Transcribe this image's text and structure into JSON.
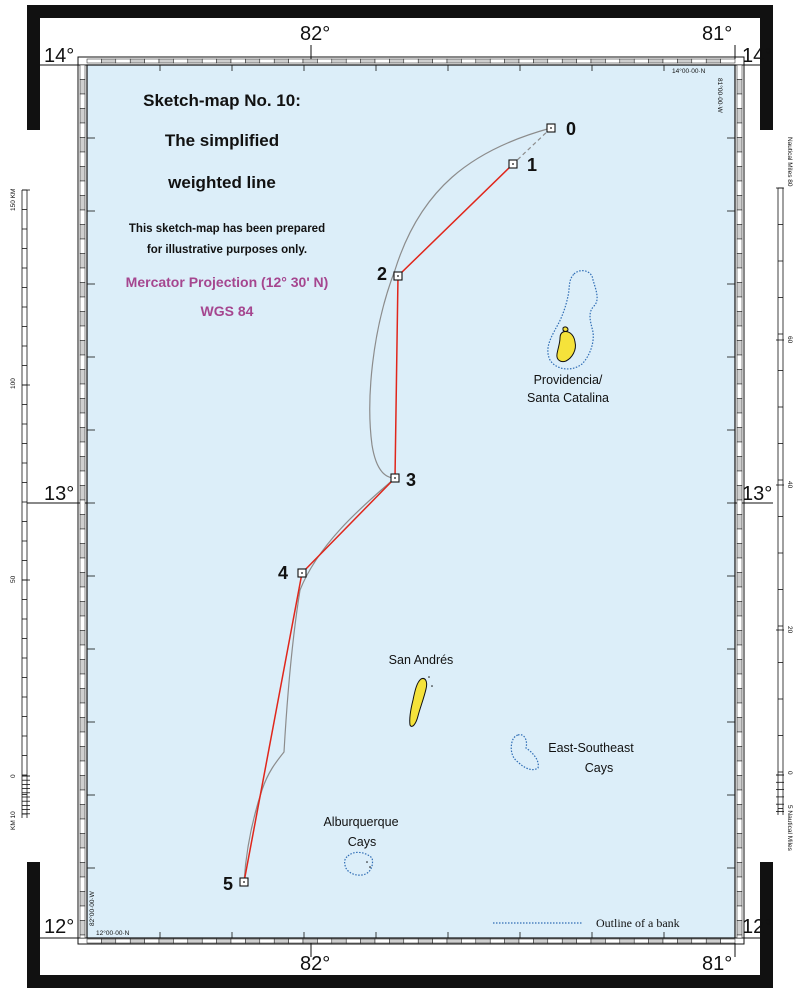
{
  "map": {
    "title_lines": [
      "Sketch-map No. 10:",
      "The simplified",
      "weighted line"
    ],
    "note_lines": [
      "This sketch-map has been prepared",
      "for illustrative purposes only."
    ],
    "projection": "Mercator Projection (12° 30' N)",
    "datum": "WGS 84",
    "colors": {
      "sea": "#dceef9",
      "land": "#f5e23a",
      "line": "#e0261b",
      "bank": "#2f6db5",
      "projection_text": "#a5468f"
    }
  },
  "graticule": {
    "lat_top_left": "14°",
    "lat_top_right": "14°",
    "lat_mid_left": "13°",
    "lat_mid_right": "13°",
    "lat_bottom_left": "12°",
    "lat_bottom_right": "12°",
    "lon_top_left": "82°",
    "lon_top_right": "81°",
    "lon_bottom_left": "82°",
    "lon_bottom_right": "81°",
    "corner_top_right": "14°00·00·N",
    "corner_top_right_lon": "81°00·00·W",
    "corner_bottom_left": "12°00·00·N",
    "corner_bottom_left_lon": "82°00·00·W"
  },
  "points": [
    {
      "label": "0"
    },
    {
      "label": "1"
    },
    {
      "label": "2"
    },
    {
      "label": "3"
    },
    {
      "label": "4"
    },
    {
      "label": "5"
    }
  ],
  "places": {
    "providencia_line1": "Providencia/",
    "providencia_line2": "Santa Catalina",
    "san_andres": "San Andrés",
    "east_southeast_line1": "East-Southeast",
    "east_southeast_line2": "Cays",
    "alburquerque_line1": "Alburquerque",
    "alburquerque_line2": "Cays"
  },
  "scales": {
    "left_km_top": "150 KM",
    "left_km_100": "100",
    "left_km_50": "50",
    "left_km_0": "0",
    "left_km_10": "KM 10",
    "right_nm_top": "Nautical Miles 80",
    "right_nm_60": "60",
    "right_nm_40": "40",
    "right_nm_20": "20",
    "right_nm_0": "0",
    "right_nm_5": "5 Nautical Miles"
  },
  "legend": {
    "bank_outline": "Outline of a bank"
  }
}
